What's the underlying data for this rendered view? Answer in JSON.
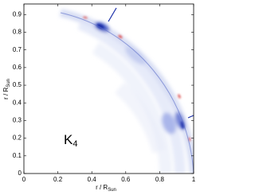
{
  "chart_data": {
    "type": "heatmap",
    "xlabel": "r / R",
    "xlabel_sub": "Sun",
    "ylabel": "r / R",
    "ylabel_sub": "Sun",
    "annotation": "K",
    "annotation_sub": "4",
    "xlim": [
      0,
      1
    ],
    "xticks": [
      0,
      0.2,
      0.4,
      0.6,
      0.8,
      1
    ],
    "ylim": [
      0,
      0.96
    ],
    "yticks": [
      0,
      0.1,
      0.2,
      0.3,
      0.4,
      0.5,
      0.6,
      0.7,
      0.8,
      0.9
    ]
  }
}
